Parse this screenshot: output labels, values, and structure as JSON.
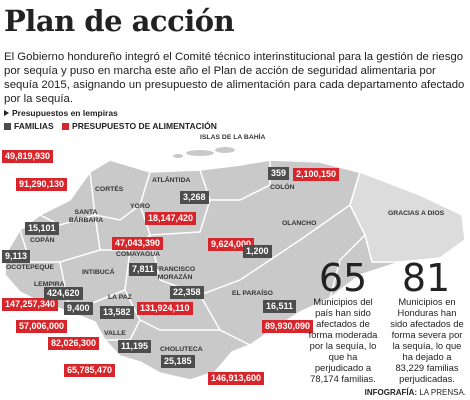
{
  "header": {
    "title": "Plan de acción",
    "intro": "El Gobierno hondureño integró el Comité técnico interinstitucional para la gestión de riesgo por sequía y puso en marcha este año el Plan de acción de seguridad alimentaria por sequía 2015, asignando un presupuesto de alimentación para cada departamento afectado por la sequía."
  },
  "legend": {
    "note": "Presupuestos en lempiras",
    "families": "FAMILIAS",
    "budget": "PRESUPUESTO DE ALIMENTACIÓN"
  },
  "departments": [
    "ISLAS DE LA BAHÍA",
    "ATLÁNTIDA",
    "CORTÉS",
    "COLÓN",
    "GRACIAS A DIOS",
    "YORO",
    "SANTA BÁRBARA",
    "COPÁN",
    "OLANCHO",
    "COMAYAGUA",
    "OCOTEPEQUE",
    "INTIBUCÁ",
    "LEMPIRA",
    "FRANCISCO MORAZÁN",
    "EL PARAÍSO",
    "LA PAZ",
    "VALLE",
    "CHOLUTECA"
  ],
  "budgets": [
    "49,819,930",
    "91,290,130",
    "2,100,150",
    "18,147,420",
    "47,043,390",
    "9,624,000",
    "147,257,340",
    "57,006,000",
    "82,026,300",
    "131,924,110",
    "89,930,090",
    "65,785,470",
    "146,913,600"
  ],
  "families": [
    "359",
    "3,268",
    "15,101",
    "9,113",
    "424,620",
    "7,811",
    "22,358",
    "1,200",
    "9,400",
    "13,582",
    "16,511",
    "11,195",
    "25,185"
  ],
  "stats": [
    {
      "number": "65",
      "text": "Municipios del país han sido afectados de forma moderada por la sequía, lo que ha perjudicado a 78,174 familias."
    },
    {
      "number": "81",
      "text": "Municipios en Honduras han sido afectados de forma severa por la sequía, lo que ha dejado a 83,229 familias perjudicadas."
    }
  ],
  "credit": {
    "label": "INFOGRAFÍA:",
    "source": "LA PRENSA."
  }
}
